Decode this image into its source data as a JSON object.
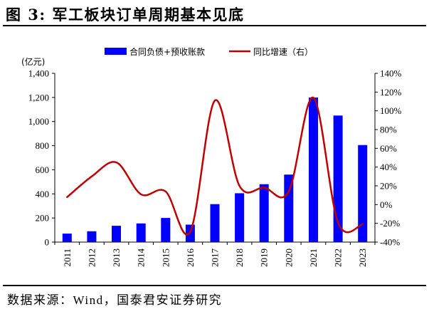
{
  "chart_data": {
    "type": "bar",
    "title": "图 3: 军工板块订单周期基本见底",
    "categories": [
      "2011",
      "2012",
      "2013",
      "2014",
      "2015",
      "2016",
      "2017",
      "2018",
      "2019",
      "2020",
      "2021",
      "2022",
      "2023"
    ],
    "series": [
      {
        "name": "合同负债+预收账款",
        "type": "bar",
        "axis": "left",
        "color": "#0000FF",
        "values": [
          70,
          90,
          135,
          155,
          200,
          145,
          315,
          405,
          480,
          560,
          1200,
          1050,
          805
        ]
      },
      {
        "name": "同比增速（右）",
        "type": "line",
        "axis": "right",
        "smooth": true,
        "color": "#C00000",
        "values": [
          8,
          30,
          45,
          11,
          14,
          -29,
          111,
          20,
          18,
          14,
          114,
          -19,
          -21
        ]
      }
    ],
    "y_left": {
      "label": "(亿元)",
      "min": 0,
      "max": 1400,
      "ticks": [
        0,
        200,
        400,
        600,
        800,
        1000,
        1200,
        1400
      ],
      "tick_labels": [
        "0",
        "200",
        "400",
        "600",
        "800",
        "1,000",
        "1,200",
        "1,400"
      ]
    },
    "y_right": {
      "min": -40,
      "max": 140,
      "ticks": [
        -40,
        -20,
        0,
        20,
        40,
        60,
        80,
        100,
        120,
        140
      ],
      "tick_labels": [
        "-40%",
        "-20%",
        "0%",
        "20%",
        "40%",
        "60%",
        "80%",
        "100%",
        "120%",
        "140%"
      ]
    },
    "legend": "top-center",
    "grid": false
  },
  "source": "数据来源：Wind，国泰君安证券研究"
}
